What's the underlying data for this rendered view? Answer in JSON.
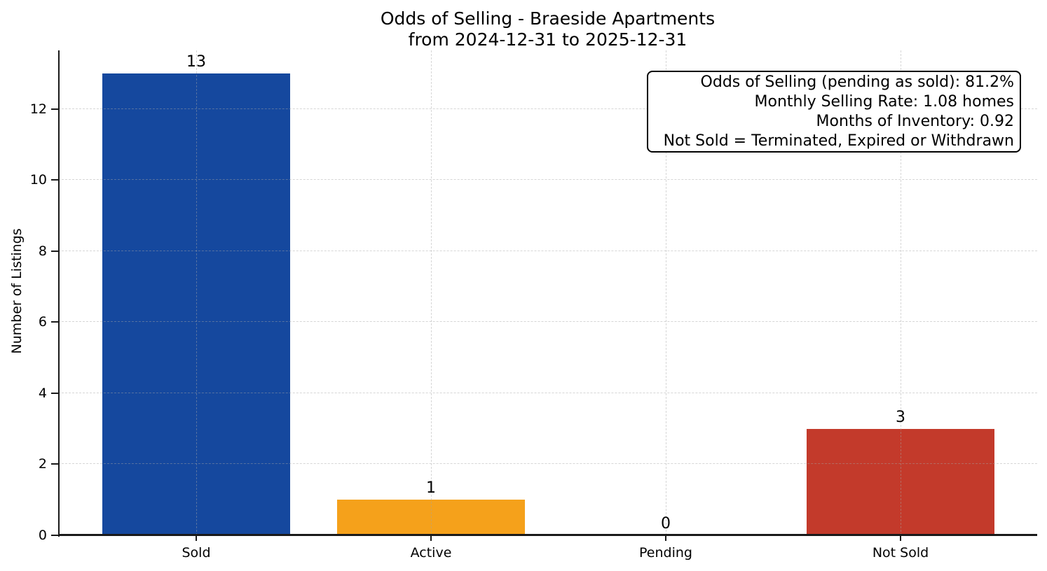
{
  "figure": {
    "title_line1": "Odds of Selling - Braeside Apartments",
    "title_line2": "from 2024-12-31 to 2025-12-31"
  },
  "chart_data": {
    "type": "bar",
    "title": "Odds of Selling - Braeside Apartments\nfrom 2024-12-31 to 2025-12-31",
    "categories": [
      "Sold",
      "Active",
      "Pending",
      "Not Sold"
    ],
    "values": [
      13,
      1,
      0,
      3
    ],
    "value_labels": [
      "13",
      "1",
      "0",
      "3"
    ],
    "bar_colors": [
      "#15489E",
      "#F5A11B",
      "#999999",
      "#C33A2B"
    ],
    "xlabel": "",
    "ylabel": "Number of Listings",
    "yticks": [
      0,
      2,
      4,
      6,
      8,
      10,
      12
    ],
    "ylim": [
      0,
      13.65
    ],
    "grid": {
      "style": "dashed",
      "axes": "both",
      "color": "#d8d8d8"
    },
    "legend_position": "none",
    "spines": [
      "left",
      "bottom"
    ],
    "annotations": [
      "Odds of Selling (pending as sold): 81.2%",
      "Monthly Selling Rate: 1.08 homes",
      "Months of Inventory: 0.92",
      "Not Sold = Terminated, Expired or Withdrawn"
    ]
  }
}
